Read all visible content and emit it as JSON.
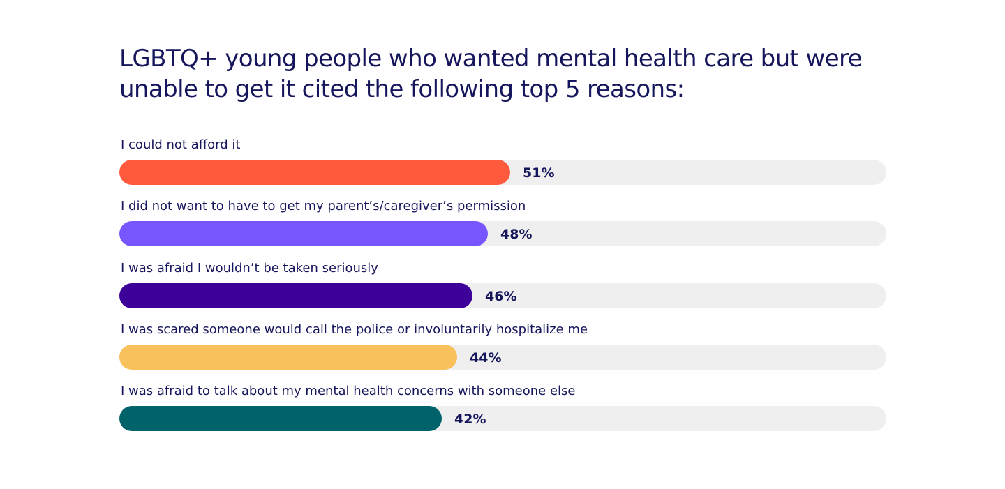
{
  "chart_data": {
    "type": "bar",
    "orientation": "horizontal",
    "title": "LGBTQ+ young people who wanted mental health care but were unable to get it cited the following top 5 reasons:",
    "categories": [
      "I could not afford it",
      "I did not want to have to get my parent’s/caregiver’s permission",
      "I was afraid I wouldn’t be taken seriously",
      "I was scared someone would call the police or involuntarily hospitalize me",
      "I was afraid to talk about my mental health concerns with someone else"
    ],
    "values": [
      51,
      48,
      46,
      44,
      42
    ],
    "value_labels": [
      "51%",
      "48%",
      "46%",
      "44%",
      "42%"
    ],
    "colors": [
      "#ff5a3d",
      "#7755ff",
      "#3d0099",
      "#f8c15c",
      "#00636a"
    ],
    "track_color": "#efefef",
    "xlim": [
      0,
      100
    ],
    "grid": false
  }
}
